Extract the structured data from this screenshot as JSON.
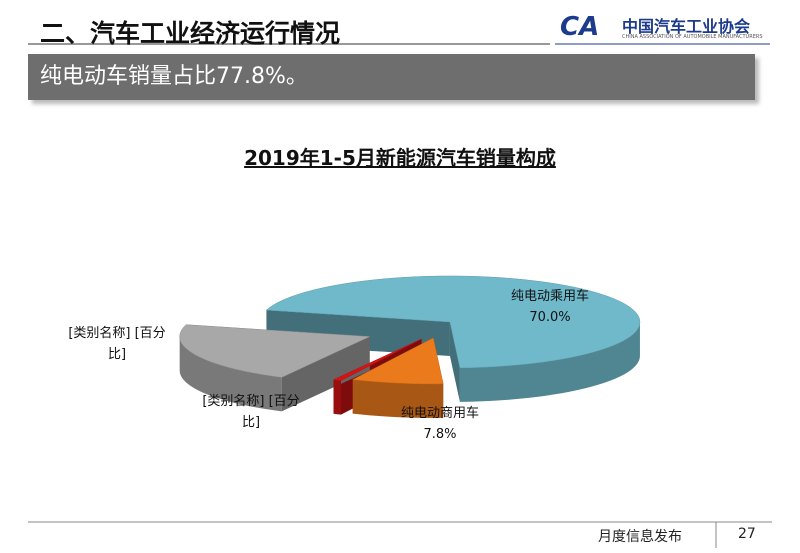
{
  "header": {
    "title": "二、汽车工业经济运行情况",
    "logo_mark": "CA",
    "logo_name": "中国汽车工业协会",
    "logo_english": "CHINA ASSOCIATION OF AUTOMOBILE MANUFACTURERS"
  },
  "banner": "纯电动车销量占比77.8%。",
  "chart_data": {
    "type": "pie3d",
    "title": "2019年1-5月新能源汽车销量构成",
    "categories": [
      "纯电动乘用车",
      "纯电动商用车",
      "[类别名称]",
      "[类别名称]"
    ],
    "values": [
      70.0,
      7.8,
      0.7,
      21.5
    ],
    "value_labels": [
      "70.0%",
      "7.8%",
      "[百分比]",
      "[百分比]"
    ],
    "colors": [
      "#6fb9cb",
      "#ea7a1c",
      "#d41414",
      "#a8a8a8"
    ]
  },
  "footer": {
    "label": "月度信息发布",
    "page": "27"
  }
}
